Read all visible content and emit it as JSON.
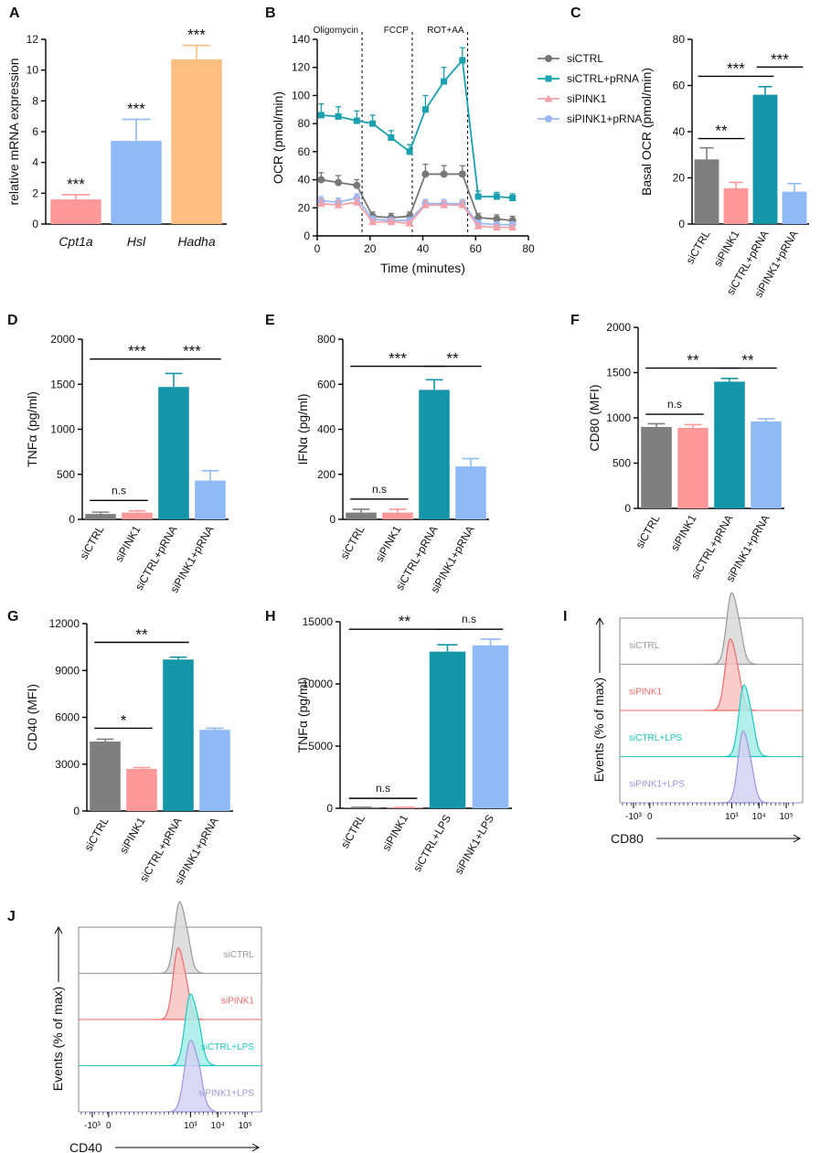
{
  "figure": {
    "panels": {
      "A": {
        "label": "A"
      },
      "B": {
        "label": "B"
      },
      "C": {
        "label": "C"
      },
      "D": {
        "label": "D"
      },
      "E": {
        "label": "E"
      },
      "F": {
        "label": "F"
      },
      "G": {
        "label": "G"
      },
      "H": {
        "label": "H"
      },
      "I": {
        "label": "I"
      },
      "J": {
        "label": "J"
      }
    }
  },
  "colors": {
    "gray": "#7f7f7f",
    "pink": "#ff9999",
    "teal": "#1596a8",
    "lightblue": "#8fbaf5",
    "orange": "#ffbf80",
    "line_gray": "#777777",
    "line_teal": "#1aa0b0",
    "line_pink": "#f4a0a8",
    "line_blue": "#9ab8f4"
  },
  "chart_data": [
    {
      "id": "A",
      "type": "bar",
      "categories": [
        "Cpt1a",
        "Hsl",
        "Hadha"
      ],
      "values": [
        1.6,
        5.4,
        10.7
      ],
      "errors": [
        0.3,
        1.4,
        0.9
      ],
      "significance": [
        "***",
        "***",
        "***"
      ],
      "ylabel": "relative mRNA expression",
      "xlabel": "",
      "ylim": [
        0,
        12
      ],
      "yticks": [
        0,
        2,
        4,
        6,
        8,
        10,
        12
      ],
      "bar_colors": [
        "pink",
        "lightblue",
        "orange"
      ]
    },
    {
      "id": "B",
      "type": "line",
      "xlabel": "Time (minutes)",
      "ylabel": "OCR (pmol/min)",
      "xlim": [
        0,
        80
      ],
      "ylim": [
        0,
        140
      ],
      "xticks": [
        0,
        20,
        40,
        60,
        80
      ],
      "yticks": [
        0,
        20,
        40,
        60,
        80,
        100,
        120,
        140
      ],
      "x": [
        1.5,
        8,
        15,
        21,
        28,
        35,
        41,
        48,
        55,
        61,
        68,
        74
      ],
      "series": [
        {
          "name": "siCTRL",
          "color": "line_gray",
          "marker": "circle",
          "values": [
            40,
            38,
            36,
            14,
            13,
            14,
            44,
            44,
            44,
            13,
            12,
            11
          ],
          "errors": [
            5,
            5,
            4,
            3,
            3,
            3,
            7,
            6,
            6,
            3,
            3,
            3
          ]
        },
        {
          "name": "siCTRL+pRNA",
          "color": "line_teal",
          "marker": "square",
          "values": [
            86,
            85,
            82,
            80,
            70,
            60,
            90,
            110,
            125,
            28,
            28,
            27
          ],
          "errors": [
            8,
            7,
            7,
            6,
            5,
            5,
            10,
            10,
            9,
            4,
            3,
            3
          ]
        },
        {
          "name": "siPINK1",
          "color": "line_pink",
          "marker": "triangle",
          "values": [
            23,
            22,
            24,
            10,
            10,
            9,
            22,
            22,
            22,
            7,
            6,
            6
          ],
          "errors": [
            3,
            3,
            3,
            2,
            2,
            2,
            3,
            3,
            3,
            2,
            2,
            2
          ]
        },
        {
          "name": "siPINK1+pRNA",
          "color": "line_blue",
          "marker": "circle",
          "values": [
            25,
            24,
            27,
            12,
            11,
            11,
            23,
            23,
            23,
            9,
            8,
            8
          ],
          "errors": [
            3,
            3,
            3,
            2,
            2,
            2,
            3,
            3,
            3,
            2,
            2,
            2
          ]
        }
      ],
      "vlines": [
        {
          "x": 17,
          "label": "Oligomycin"
        },
        {
          "x": 36,
          "label": "FCCP"
        },
        {
          "x": 57,
          "label": "ROT+AA"
        }
      ]
    },
    {
      "id": "C",
      "type": "bar",
      "categories": [
        "siCTRL",
        "siPINK1",
        "siCTRL+pRNA",
        "siPINK1+pRNA"
      ],
      "values": [
        28,
        15.5,
        56,
        14
      ],
      "errors": [
        5,
        2.5,
        3.5,
        3.5
      ],
      "ylabel": "Basal OCR (pmol/min)",
      "ylim": [
        0,
        80
      ],
      "yticks": [
        0,
        20,
        40,
        60,
        80
      ],
      "bar_colors": [
        "gray",
        "pink",
        "teal",
        "lightblue"
      ],
      "brackets": [
        {
          "from": 0,
          "to": 1,
          "label": "**",
          "y": 37
        },
        {
          "from": 0,
          "to": 2,
          "label": "***",
          "y": 64
        },
        {
          "from": 2,
          "to": 3,
          "label": "***",
          "y": 68
        }
      ]
    },
    {
      "id": "D",
      "type": "bar",
      "categories": [
        "siCTRL",
        "siPINK1",
        "siCTRL+pRNA",
        "siPINK1+pRNA"
      ],
      "values": [
        60,
        75,
        1470,
        430
      ],
      "errors": [
        20,
        20,
        150,
        110
      ],
      "ylabel": "TNFα (pg/ml)",
      "ylim": [
        0,
        2000
      ],
      "yticks": [
        0,
        500,
        1000,
        1500,
        2000
      ],
      "bar_colors": [
        "gray",
        "pink",
        "teal",
        "lightblue"
      ],
      "brackets": [
        {
          "from": 0,
          "to": 1,
          "label": "n.s",
          "y": 210
        },
        {
          "from": 0,
          "to": 2,
          "label": "***",
          "y": 1780
        },
        {
          "from": 2,
          "to": 3,
          "label": "***",
          "y": 1780
        }
      ]
    },
    {
      "id": "E",
      "type": "bar",
      "categories": [
        "siCTRL",
        "siPINK1",
        "siCTRL+pRNA",
        "siPINK1+pRNA"
      ],
      "values": [
        30,
        30,
        575,
        235
      ],
      "errors": [
        15,
        15,
        45,
        35
      ],
      "ylabel": "IFNα (pg/ml)",
      "ylim": [
        0,
        800
      ],
      "yticks": [
        0,
        200,
        400,
        600,
        800
      ],
      "bar_colors": [
        "gray",
        "pink",
        "teal",
        "lightblue"
      ],
      "brackets": [
        {
          "from": 0,
          "to": 1,
          "label": "n.s",
          "y": 90
        },
        {
          "from": 0,
          "to": 2,
          "label": "***",
          "y": 680
        },
        {
          "from": 2,
          "to": 3,
          "label": "**",
          "y": 680
        }
      ]
    },
    {
      "id": "F",
      "type": "bar",
      "categories": [
        "siCTRL",
        "siPINK1",
        "siCTRL+pRNA",
        "siPINK1+pRNA"
      ],
      "values": [
        900,
        890,
        1400,
        960
      ],
      "errors": [
        35,
        35,
        35,
        30
      ],
      "ylabel": "CD80 (MFI)",
      "ylim": [
        0,
        2000
      ],
      "yticks": [
        0,
        500,
        1000,
        1500,
        2000
      ],
      "bar_colors": [
        "gray",
        "pink",
        "teal",
        "lightblue"
      ],
      "brackets": [
        {
          "from": 0,
          "to": 1,
          "label": "n.s",
          "y": 1040
        },
        {
          "from": 0,
          "to": 2,
          "label": "**",
          "y": 1550
        },
        {
          "from": 2,
          "to": 3,
          "label": "**",
          "y": 1550
        }
      ]
    },
    {
      "id": "G",
      "type": "bar",
      "categories": [
        "siCTRL",
        "siPINK1",
        "siCTRL+pRNA",
        "siPINK1+pRNA"
      ],
      "values": [
        4450,
        2700,
        9700,
        5200
      ],
      "errors": [
        150,
        80,
        150,
        100
      ],
      "ylabel": "CD40 (MFI)",
      "ylim": [
        0,
        12000
      ],
      "yticks": [
        0,
        3000,
        6000,
        9000,
        12000
      ],
      "bar_colors": [
        "gray",
        "pink",
        "teal",
        "lightblue"
      ],
      "brackets": [
        {
          "from": 0,
          "to": 1,
          "label": "*",
          "y": 5300
        },
        {
          "from": 0,
          "to": 2,
          "label": "**",
          "y": 10800
        }
      ]
    },
    {
      "id": "H",
      "type": "bar",
      "categories": [
        "siCTRL",
        "siPINK1",
        "siCTRL+LPS",
        "siPINK1+LPS"
      ],
      "values": [
        50,
        50,
        12600,
        13100
      ],
      "errors": [
        30,
        30,
        550,
        500
      ],
      "ylabel": "TNFα (pg/ml)",
      "ylim": [
        0,
        15000
      ],
      "yticks": [
        0,
        5000,
        10000,
        15000
      ],
      "bar_colors": [
        "gray",
        "pink",
        "teal",
        "lightblue"
      ],
      "brackets": [
        {
          "from": 0,
          "to": 1,
          "label": "n.s",
          "y": 800
        },
        {
          "from": 0,
          "to": 2,
          "label": "**",
          "y": 14400
        },
        {
          "from": 2,
          "to": 3,
          "label": "n.s",
          "y": 14400
        }
      ]
    },
    {
      "id": "I",
      "type": "histogram",
      "marker": "CD80",
      "ylabel": "Events (% of max)",
      "xticks": [
        "-10³",
        "0",
        "10³",
        "10⁴",
        "10⁵"
      ],
      "xtick_positions": [
        -0.6,
        0,
        3,
        4,
        5
      ],
      "tracks": [
        {
          "label": "siCTRL",
          "peak": 3.0,
          "width": 0.12,
          "color": "#9a9a9a",
          "fill": "#d9d9d9"
        },
        {
          "label": "siPINK1",
          "peak": 2.95,
          "width": 0.12,
          "color": "#f06a6a",
          "fill": "#f8c2c2"
        },
        {
          "label": "siCTRL+LPS",
          "peak": 3.45,
          "width": 0.12,
          "color": "#1cc8c0",
          "fill": "#a6ece8"
        },
        {
          "label": "siPINK1+LPS",
          "peak": 3.42,
          "width": 0.12,
          "color": "#9b95dc",
          "fill": "#d4d1f3"
        }
      ]
    },
    {
      "id": "J",
      "type": "histogram",
      "marker": "CD40",
      "ylabel": "Events (% of max)",
      "xticks": [
        "-10³",
        "0",
        "10³",
        "10⁴",
        "10⁵"
      ],
      "xtick_positions": [
        -0.6,
        0,
        3,
        4,
        5
      ],
      "tracks": [
        {
          "label": "siCTRL",
          "peak": 2.6,
          "width": 0.12,
          "color": "#9a9a9a",
          "fill": "#d9d9d9"
        },
        {
          "label": "siPINK1",
          "peak": 2.55,
          "width": 0.12,
          "color": "#f06a6a",
          "fill": "#f8c2c2"
        },
        {
          "label": "siCTRL+LPS",
          "peak": 3.0,
          "width": 0.13,
          "color": "#1cc8c0",
          "fill": "#a6ece8"
        },
        {
          "label": "siPINK1+LPS",
          "peak": 3.0,
          "width": 0.14,
          "color": "#9b95dc",
          "fill": "#d4d1f3"
        }
      ]
    }
  ]
}
